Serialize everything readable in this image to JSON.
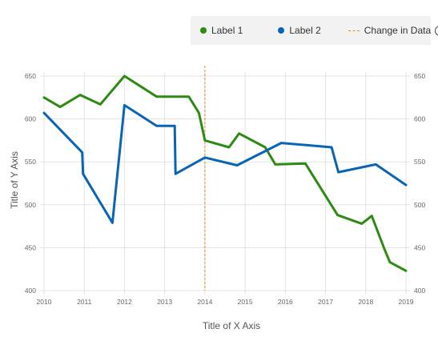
{
  "legend": {
    "label1": "Label 1",
    "label2": "Label 2",
    "change": "Change in Data",
    "label1_color": "#2d8a12",
    "label2_color": "#0a64b4",
    "change_color": "#e08a1e",
    "info_icon": "info-icon"
  },
  "chart_data": {
    "type": "line",
    "xlabel": "Title of X Axis",
    "ylabel": "Title of Y Axis",
    "xlim": [
      2010,
      2019
    ],
    "ylim": [
      400,
      650
    ],
    "x_ticks": [
      "2010",
      "2011",
      "2012",
      "2013",
      "2014",
      "2015",
      "2016",
      "2017",
      "2018",
      "2019"
    ],
    "y_ticks": [
      "400",
      "450",
      "500",
      "550",
      "600",
      "650"
    ],
    "grid": true,
    "right_axis": true,
    "legend_position": "top-right",
    "change_marker": {
      "label": "Change in Data",
      "x": 2014
    },
    "series": [
      {
        "name": "Label 1",
        "color": "#2d8a12",
        "x": [
          2010.0,
          2010.4,
          2010.9,
          2011.4,
          2012.0,
          2012.8,
          2013.6,
          2013.85,
          2014.0,
          2014.6,
          2014.85,
          2015.5,
          2015.75,
          2016.5,
          2017.3,
          2017.9,
          2018.15,
          2018.45,
          2018.6,
          2019.0
        ],
        "values": [
          625,
          614,
          628,
          617,
          650,
          626,
          626,
          607,
          575,
          567,
          583,
          567,
          547,
          548,
          488,
          478,
          487,
          450,
          433,
          423
        ]
      },
      {
        "name": "Label 2",
        "color": "#0a64b4",
        "x": [
          2010.0,
          2010.95,
          2010.97,
          2011.7,
          2012.0,
          2012.8,
          2013.25,
          2013.27,
          2014.0,
          2014.8,
          2015.9,
          2017.15,
          2017.32,
          2018.25,
          2019.0
        ],
        "values": [
          607,
          561,
          536,
          479,
          616,
          592,
          592,
          536,
          555,
          546,
          572,
          567,
          538,
          547,
          523
        ]
      }
    ]
  }
}
